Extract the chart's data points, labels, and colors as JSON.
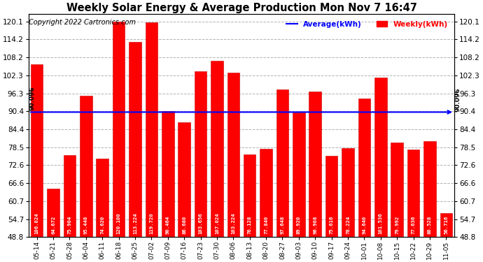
{
  "title": "Weekly Solar Energy & Average Production Mon Nov 7 16:47",
  "copyright": "Copyright 2022 Cartronics.com",
  "categories": [
    "05-14",
    "05-21",
    "05-28",
    "06-04",
    "06-11",
    "06-18",
    "06-25",
    "07-02",
    "07-09",
    "07-16",
    "07-23",
    "07-30",
    "08-06",
    "08-13",
    "08-20",
    "08-27",
    "09-03",
    "09-10",
    "09-17",
    "09-24",
    "10-01",
    "10-08",
    "10-15",
    "10-22",
    "10-29",
    "11-05"
  ],
  "values": [
    106.024,
    64.672,
    75.904,
    95.448,
    74.62,
    120.1,
    113.224,
    119.72,
    90.464,
    86.68,
    103.656,
    107.024,
    103.224,
    76.128,
    77.84,
    97.648,
    89.92,
    96.908,
    75.616,
    78.224,
    94.64,
    101.536,
    79.992,
    77.636,
    80.528,
    56.716
  ],
  "average": 90.096,
  "bar_color": "#ff0000",
  "bar_edge_color": "#cc0000",
  "average_line_color": "#0000ff",
  "background_color": "#ffffff",
  "plot_bg_color": "#ffffff",
  "grid_color": "#aaaaaa",
  "ytick_values": [
    48.8,
    54.7,
    60.7,
    66.6,
    72.6,
    78.5,
    84.4,
    90.4,
    96.3,
    102.3,
    108.2,
    114.2,
    120.1
  ],
  "ylim_min": 48.8,
  "ylim_max": 122.5,
  "legend_average_label": "Average(kWh)",
  "legend_weekly_label": "Weekly(kWh)",
  "legend_average_color": "#0000ff",
  "legend_weekly_color": "#ff0000",
  "value_text_color": "#ffffff",
  "value_fontsize": 5.2,
  "title_fontsize": 10.5,
  "copyright_fontsize": 7,
  "tick_fontsize": 7.5,
  "xtick_fontsize": 6.5,
  "avg_label_fontsize": 6.5,
  "avg_label": "90.096"
}
